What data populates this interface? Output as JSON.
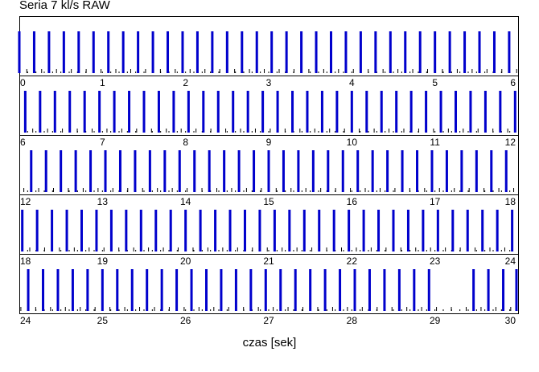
{
  "chart_data": {
    "type": "raster",
    "title": "Seria 7 kl/s RAW",
    "xlabel": "czas [sek]",
    "rows": [
      {
        "xlim": [
          0,
          6
        ],
        "tick_labels": [
          "0",
          "1",
          "2",
          "3",
          "4",
          "5",
          "6"
        ]
      },
      {
        "xlim": [
          6,
          12
        ],
        "tick_labels": [
          "6",
          "7",
          "8",
          "9",
          "10",
          "11",
          "12"
        ]
      },
      {
        "xlim": [
          12,
          18
        ],
        "tick_labels": [
          "12",
          "13",
          "14",
          "15",
          "16",
          "17",
          "18"
        ]
      },
      {
        "xlim": [
          18,
          24
        ],
        "tick_labels": [
          "18",
          "19",
          "20",
          "21",
          "22",
          "23",
          "24"
        ]
      },
      {
        "xlim": [
          24,
          30
        ],
        "tick_labels": [
          "24",
          "25",
          "26",
          "27",
          "28",
          "29",
          "30"
        ]
      }
    ],
    "series": [
      {
        "name": "",
        "color": "#0000cc",
        "rate_per_sec": 5.6,
        "start": 0.0,
        "end": 30.0,
        "gaps": [
          [
            29.0,
            29.45
          ]
        ]
      }
    ],
    "baseline_marks": {
      "color": "#000000",
      "rate_per_sec": 5.6,
      "offset": 0.09
    }
  }
}
